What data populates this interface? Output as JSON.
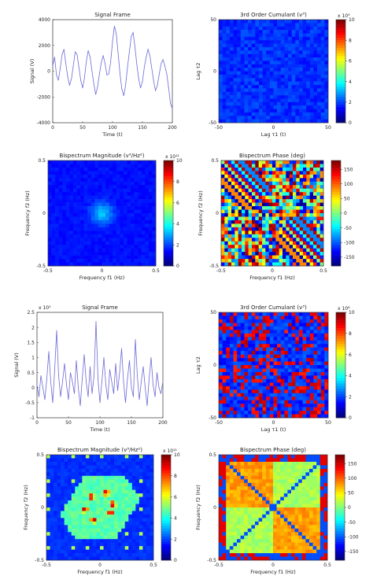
{
  "chart_data": [
    {
      "type": "line",
      "title": "Signal Frame",
      "xlabel": "Time (t)",
      "ylabel": "Signal (V)",
      "xlim": [
        0,
        200
      ],
      "ylim": [
        -4000,
        4000
      ],
      "xticks": [
        "0",
        "50",
        "100",
        "150",
        "200"
      ],
      "yticks": [
        "4000",
        "2000",
        "0",
        "-2000",
        "-4000"
      ],
      "series": [
        {
          "color": "#6a6ad8",
          "values": [
            400,
            1100,
            -300,
            -700,
            200,
            1300,
            1700,
            600,
            -400,
            -1100,
            -600,
            400,
            1500,
            1300,
            300,
            -700,
            -1300,
            -500,
            800,
            1600,
            1100,
            0,
            -1000,
            -1800,
            -1200,
            -200,
            700,
            1200,
            600,
            -300,
            -200,
            700,
            2300,
            3500,
            2900,
            1400,
            -200,
            -1400,
            -1900,
            -1100,
            300,
            1500,
            2700,
            3000,
            1900,
            500,
            -600,
            -1300,
            -800,
            300,
            1100,
            1700,
            1200,
            200,
            -800,
            -1500,
            -1100,
            -200,
            600,
            900,
            400,
            -200,
            -1300,
            -2500,
            -2900
          ]
        }
      ]
    },
    {
      "type": "heatmap",
      "title": "3rd Order Cumulant (v³)",
      "xlabel": "Lag τ1 (t)",
      "ylabel": "Lag τ2",
      "xlim": [
        -50,
        50
      ],
      "ylim": [
        -50,
        50
      ],
      "xticks": [
        "-50",
        "0",
        "50"
      ],
      "yticks": [
        "50",
        "0",
        "-50"
      ],
      "colorbar": {
        "exponent": "x 10⁹",
        "ticks": [
          "10",
          "8",
          "6",
          "4",
          "2",
          "0"
        ],
        "range": [
          0,
          10
        ]
      },
      "pattern": "low-uniform"
    },
    {
      "type": "heatmap",
      "title": "Bispectrum Magnitude (v³/Hz²)",
      "xlabel": "Frequency f1 (Hz)",
      "ylabel": "Frequency f2 (Hz)",
      "xlim": [
        -0.5,
        0.5
      ],
      "ylim": [
        -0.5,
        0.5
      ],
      "xticks": [
        "-0.5",
        "0",
        "0.5"
      ],
      "yticks": [
        "0.5",
        "0",
        "-0.5"
      ],
      "colorbar": {
        "exponent": "x 10¹¹",
        "ticks": [
          "10",
          "8",
          "6",
          "4",
          "2",
          "0"
        ],
        "range": [
          0,
          10
        ]
      },
      "pattern": "low-center-blob"
    },
    {
      "type": "heatmap",
      "title": "Bispectrum Phase (deg)",
      "xlabel": "Frequency f1 (Hz)",
      "ylabel": "Frequency f2 (Hz)",
      "xlim": [
        -0.5,
        0.5
      ],
      "ylim": [
        -0.5,
        0.5
      ],
      "xticks": [
        "-0.5",
        "0",
        "0.5"
      ],
      "yticks": [
        "0.5",
        "0",
        "-0.5"
      ],
      "colorbar": {
        "ticks": [
          "150",
          "100",
          "50",
          "0",
          "-50",
          "-100",
          "-150"
        ],
        "range": [
          -180,
          180
        ]
      },
      "pattern": "phase-noise"
    },
    {
      "type": "line",
      "title": "Signal Frame",
      "xlabel": "Time (t)",
      "ylabel": "Signal (V)",
      "exponent": "x 10⁵",
      "xlim": [
        0,
        200
      ],
      "ylim": [
        -1,
        2.5
      ],
      "xticks": [
        "0",
        "50",
        "100",
        "150",
        "200"
      ],
      "yticks": [
        "2.5",
        "2",
        "1.5",
        "1",
        "0.5",
        "0",
        "-0.5",
        "-1"
      ],
      "series": [
        {
          "color": "#6a6ad8",
          "values": [
            0.1,
            -0.3,
            0.4,
            0.0,
            -0.4,
            0.3,
            1.2,
            0.2,
            -0.5,
            0.6,
            1.9,
            0.4,
            -0.3,
            0.2,
            0.8,
            0.1,
            -0.4,
            0.5,
            0.2,
            -0.2,
            0.9,
            0.0,
            -0.6,
            0.3,
            1.1,
            0.2,
            -0.3,
            0.7,
            -0.2,
            0.4,
            2.2,
            0.3,
            -0.5,
            0.2,
            1.0,
            0.1,
            -0.4,
            0.6,
            0.2,
            -0.2,
            0.8,
            -0.1,
            0.5,
            1.3,
            0.2,
            -0.5,
            0.3,
            0.9,
            0.0,
            -0.3,
            1.6,
            0.4,
            -0.4,
            0.2,
            0.7,
            0.0,
            -0.6,
            0.3,
            1.0,
            0.1,
            -0.3,
            0.5,
            0.0,
            -0.2,
            0.2
          ]
        }
      ]
    },
    {
      "type": "heatmap",
      "title": "3rd Order Cumulant (v³)",
      "xlabel": "Lag τ1 (t)",
      "ylabel": "Lag τ2",
      "xlim": [
        -50,
        50
      ],
      "ylim": [
        -50,
        50
      ],
      "xticks": [
        "-50",
        "0",
        "50"
      ],
      "yticks": [
        "50",
        "0",
        "-50"
      ],
      "colorbar": {
        "exponent": "x 10⁸",
        "ticks": [
          "10",
          "8",
          "6",
          "4",
          "2",
          "0"
        ],
        "range": [
          0,
          10
        ]
      },
      "pattern": "cumulant-rings"
    },
    {
      "type": "heatmap",
      "title": "Bispectrum Magnitude (v³/Hz²)",
      "xlabel": "Frequency f1 (Hz)",
      "ylabel": "Frequency f2 (Hz)",
      "xlim": [
        -0.5,
        0.5
      ],
      "ylim": [
        -0.5,
        0.5
      ],
      "xticks": [
        "-0.5",
        "0",
        "0.5"
      ],
      "yticks": [
        "0.5",
        "0",
        "-0.5"
      ],
      "colorbar": {
        "exponent": "x 10¹¹",
        "ticks": [
          "10",
          "8",
          "6",
          "4",
          "2",
          "0"
        ],
        "range": [
          0,
          10
        ]
      },
      "pattern": "hexagonal-peaks"
    },
    {
      "type": "heatmap",
      "title": "Bispectrum Phase (deg)",
      "xlabel": "Frequency f1 (Hz)",
      "ylabel": "Frequency f2 (Hz)",
      "xlim": [
        -0.5,
        0.5
      ],
      "ylim": [
        -0.5,
        0.5
      ],
      "xticks": [
        "-0.5",
        "0",
        "0.5"
      ],
      "yticks": [
        "0.5",
        "0",
        "-0.5"
      ],
      "colorbar": {
        "ticks": [
          "150",
          "100",
          "50",
          "0",
          "-50",
          "-100",
          "-150"
        ],
        "range": [
          -180,
          180
        ]
      },
      "pattern": "phase-blocks"
    }
  ]
}
